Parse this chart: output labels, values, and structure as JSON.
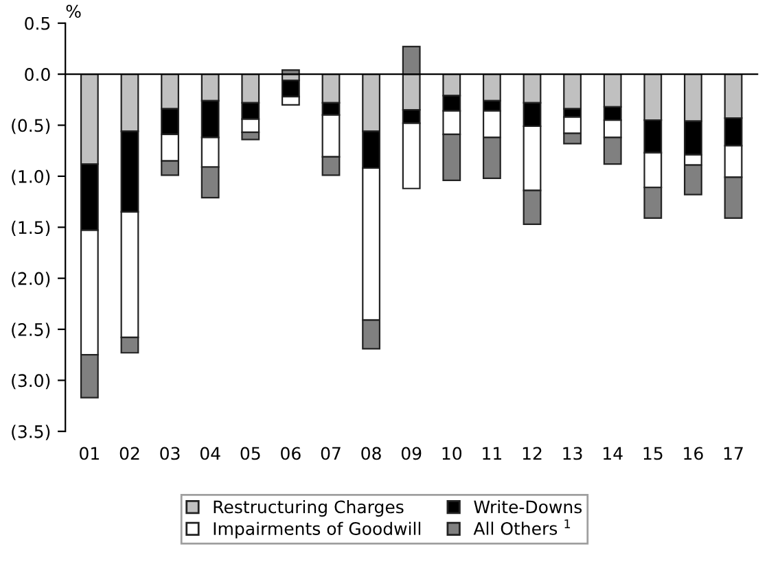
{
  "chart_data": {
    "type": "bar",
    "stacked": true,
    "ylabel": "%",
    "categories": [
      "01",
      "02",
      "03",
      "04",
      "05",
      "06",
      "07",
      "08",
      "09",
      "10",
      "11",
      "12",
      "13",
      "14",
      "15",
      "16",
      "17"
    ],
    "series": [
      {
        "name": "Restructuring Charges",
        "color": "#c0c0c0",
        "values": [
          -0.88,
          -0.56,
          -0.34,
          -0.26,
          -0.28,
          -0.06,
          -0.28,
          -0.56,
          -0.35,
          -0.21,
          -0.26,
          -0.28,
          -0.34,
          -0.32,
          -0.45,
          -0.46,
          -0.43
        ]
      },
      {
        "name": "Write-Downs",
        "color": "#000000",
        "values": [
          -0.65,
          -0.79,
          -0.25,
          -0.36,
          -0.16,
          -0.16,
          -0.12,
          -0.36,
          -0.13,
          -0.15,
          -0.1,
          -0.23,
          -0.08,
          -0.13,
          -0.32,
          -0.33,
          -0.27
        ]
      },
      {
        "name": "Impairments of Goodwill",
        "color": "#ffffff",
        "values": [
          -1.22,
          -1.23,
          -0.26,
          -0.29,
          -0.13,
          -0.08,
          -0.41,
          -1.49,
          -0.64,
          -0.23,
          -0.26,
          -0.63,
          -0.16,
          -0.17,
          -0.34,
          -0.1,
          -0.31
        ]
      },
      {
        "name": "All Others $^{1}$",
        "color": "#808080",
        "values": [
          -0.42,
          -0.15,
          -0.14,
          -0.3,
          -0.07,
          0.04,
          -0.18,
          -0.28,
          0.27,
          -0.45,
          -0.4,
          -0.33,
          -0.1,
          -0.26,
          -0.3,
          -0.29,
          -0.4
        ]
      }
    ],
    "ylim": [
      -3.5,
      0.5
    ],
    "yticks": [
      0.5,
      {
        "value": 0.0,
        "label": "0.0"
      },
      {
        "value": -0.5,
        "label": "(0.5)"
      },
      {
        "value": -1.0,
        "label": "(1.0)"
      },
      {
        "value": -1.5,
        "label": "(1.5)"
      },
      {
        "value": -2.0,
        "label": "(2.0)"
      },
      {
        "value": -2.5,
        "label": "(2.5)"
      },
      {
        "value": -3.0,
        "label": "(3.0)"
      },
      {
        "value": -3.5,
        "label": "(3.5)"
      }
    ],
    "legend": "bottom"
  }
}
